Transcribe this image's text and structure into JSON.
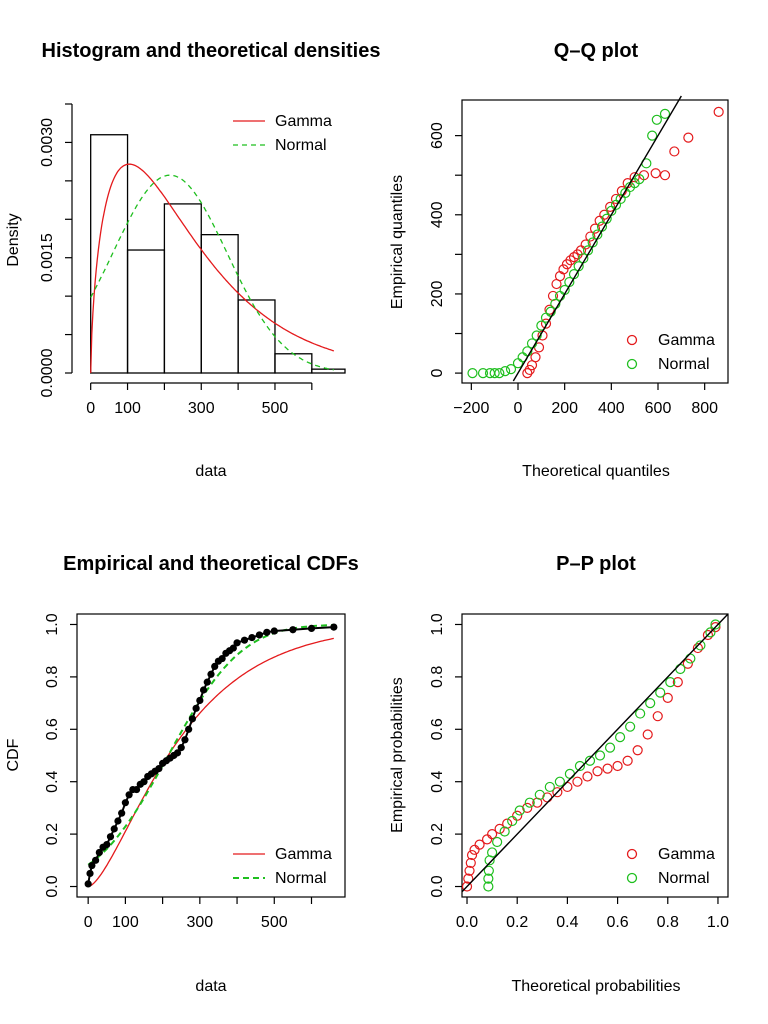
{
  "colors": {
    "gamma": "#e41a1c",
    "normal": "#1fbf1f",
    "ink": "#000000"
  },
  "chart_data": [
    {
      "id": "hist",
      "type": "bar",
      "title": "Histogram and theoretical densities",
      "xlabel": "data",
      "ylabel": "Density",
      "xlim": [
        -10,
        690
      ],
      "ylim": [
        0,
        0.0035
      ],
      "xticks": [
        0,
        100,
        300,
        500
      ],
      "xticks_minor": [
        200,
        400,
        600
      ],
      "yticks": [
        0.0,
        0.0015,
        0.003
      ],
      "ytick_labels": [
        "0.0000",
        "0.0015",
        "0.0030"
      ],
      "yticks_minor": [
        0.0005,
        0.001,
        0.002,
        0.0025,
        0.0035
      ],
      "bins": [
        {
          "x0": 0,
          "x1": 100,
          "density": 0.0031
        },
        {
          "x0": 100,
          "x1": 200,
          "density": 0.0016
        },
        {
          "x0": 200,
          "x1": 300,
          "density": 0.0022
        },
        {
          "x0": 300,
          "x1": 400,
          "density": 0.0018
        },
        {
          "x0": 400,
          "x1": 500,
          "density": 0.00095
        },
        {
          "x0": 500,
          "x1": 600,
          "density": 0.00025
        },
        {
          "x0": 600,
          "x1": 690,
          "density": 5e-05
        }
      ],
      "series": [
        {
          "name": "Gamma",
          "type": "line",
          "dist": "gamma",
          "shape": 1.65,
          "rate": 0.0062,
          "color_key": "gamma",
          "dash": ""
        },
        {
          "name": "Normal",
          "type": "line",
          "dist": "normal",
          "mean": 215,
          "sd": 155,
          "color_key": "normal",
          "dash": "5,4"
        }
      ],
      "legend": "top-right"
    },
    {
      "id": "qq",
      "type": "scatter",
      "title": "Q–Q plot",
      "xlabel": "Theoretical quantiles",
      "ylabel": "Empirical quantiles",
      "xlim": [
        -240,
        900
      ],
      "ylim": [
        -25,
        690
      ],
      "xticks": [
        -200,
        0,
        200,
        400,
        600,
        800
      ],
      "xtick_labels": [
        "−200",
        "0",
        "200",
        "400",
        "600",
        "800"
      ],
      "yticks": [
        0,
        200,
        400,
        600
      ],
      "yticks_minor": [
        100,
        300,
        500
      ],
      "reference_line": {
        "x": [
          -20,
          700
        ],
        "y": [
          -20,
          700
        ]
      },
      "series": [
        {
          "name": "Gamma",
          "color_key": "gamma",
          "points": [
            [
              40,
              0
            ],
            [
              50,
              8
            ],
            [
              60,
              20
            ],
            [
              75,
              40
            ],
            [
              90,
              65
            ],
            [
              105,
              95
            ],
            [
              120,
              125
            ],
            [
              135,
              160
            ],
            [
              150,
              195
            ],
            [
              165,
              225
            ],
            [
              180,
              245
            ],
            [
              195,
              262
            ],
            [
              210,
              275
            ],
            [
              225,
              285
            ],
            [
              240,
              293
            ],
            [
              255,
              300
            ],
            [
              270,
              310
            ],
            [
              290,
              325
            ],
            [
              310,
              345
            ],
            [
              330,
              365
            ],
            [
              350,
              385
            ],
            [
              370,
              400
            ],
            [
              395,
              420
            ],
            [
              420,
              440
            ],
            [
              445,
              460
            ],
            [
              470,
              480
            ],
            [
              500,
              495
            ],
            [
              540,
              500
            ],
            [
              590,
              505
            ],
            [
              630,
              500
            ],
            [
              670,
              560
            ],
            [
              730,
              595
            ],
            [
              860,
              660
            ]
          ]
        },
        {
          "name": "Normal",
          "color_key": "normal",
          "points": [
            [
              -195,
              0
            ],
            [
              -150,
              0
            ],
            [
              -120,
              0
            ],
            [
              -100,
              0
            ],
            [
              -80,
              0
            ],
            [
              -55,
              5
            ],
            [
              -30,
              10
            ],
            [
              0,
              25
            ],
            [
              20,
              40
            ],
            [
              40,
              55
            ],
            [
              60,
              75
            ],
            [
              80,
              95
            ],
            [
              100,
              120
            ],
            [
              120,
              140
            ],
            [
              140,
              155
            ],
            [
              160,
              175
            ],
            [
              180,
              195
            ],
            [
              200,
              210
            ],
            [
              220,
              230
            ],
            [
              240,
              250
            ],
            [
              260,
              270
            ],
            [
              280,
              290
            ],
            [
              300,
              310
            ],
            [
              320,
              330
            ],
            [
              340,
              350
            ],
            [
              360,
              370
            ],
            [
              380,
              390
            ],
            [
              400,
              410
            ],
            [
              420,
              425
            ],
            [
              440,
              440
            ],
            [
              460,
              455
            ],
            [
              480,
              470
            ],
            [
              500,
              480
            ],
            [
              520,
              490
            ],
            [
              550,
              530
            ],
            [
              575,
              600
            ],
            [
              595,
              640
            ],
            [
              630,
              655
            ]
          ]
        }
      ],
      "legend": "bottom-right"
    },
    {
      "id": "cdf",
      "type": "line",
      "title": "Empirical and theoretical CDFs",
      "xlabel": "data",
      "ylabel": "CDF",
      "xlim": [
        -30,
        690
      ],
      "ylim": [
        -0.04,
        1.04
      ],
      "xticks": [
        0,
        100,
        300,
        500
      ],
      "xticks_minor": [
        200,
        400,
        600
      ],
      "yticks": [
        0.0,
        0.2,
        0.4,
        0.6,
        0.8,
        1.0
      ],
      "ytick_labels": [
        "0.0",
        "0.2",
        "0.4",
        "0.6",
        "0.8",
        "1.0"
      ],
      "empirical": [
        [
          0,
          0.01
        ],
        [
          5,
          0.05
        ],
        [
          10,
          0.08
        ],
        [
          20,
          0.1
        ],
        [
          30,
          0.13
        ],
        [
          40,
          0.15
        ],
        [
          50,
          0.16
        ],
        [
          60,
          0.19
        ],
        [
          70,
          0.22
        ],
        [
          80,
          0.25
        ],
        [
          90,
          0.28
        ],
        [
          100,
          0.32
        ],
        [
          110,
          0.35
        ],
        [
          120,
          0.37
        ],
        [
          130,
          0.37
        ],
        [
          140,
          0.39
        ],
        [
          150,
          0.4
        ],
        [
          160,
          0.42
        ],
        [
          170,
          0.43
        ],
        [
          180,
          0.44
        ],
        [
          190,
          0.45
        ],
        [
          200,
          0.47
        ],
        [
          210,
          0.48
        ],
        [
          220,
          0.49
        ],
        [
          230,
          0.5
        ],
        [
          240,
          0.51
        ],
        [
          250,
          0.53
        ],
        [
          260,
          0.56
        ],
        [
          270,
          0.6
        ],
        [
          280,
          0.64
        ],
        [
          290,
          0.68
        ],
        [
          300,
          0.71
        ],
        [
          310,
          0.75
        ],
        [
          320,
          0.78
        ],
        [
          330,
          0.81
        ],
        [
          340,
          0.84
        ],
        [
          350,
          0.86
        ],
        [
          360,
          0.87
        ],
        [
          370,
          0.89
        ],
        [
          380,
          0.9
        ],
        [
          390,
          0.91
        ],
        [
          400,
          0.93
        ],
        [
          420,
          0.94
        ],
        [
          440,
          0.95
        ],
        [
          460,
          0.96
        ],
        [
          480,
          0.97
        ],
        [
          500,
          0.975
        ],
        [
          550,
          0.98
        ],
        [
          600,
          0.985
        ],
        [
          660,
          0.99
        ]
      ],
      "series": [
        {
          "name": "Gamma",
          "color_key": "gamma",
          "dash": ""
        },
        {
          "name": "Normal",
          "color_key": "normal",
          "dash": "6,4"
        }
      ],
      "legend": "bottom-right"
    },
    {
      "id": "pp",
      "type": "scatter",
      "title": "P–P plot",
      "xlabel": "Theoretical probabilities",
      "ylabel": "Empirical probabilities",
      "xlim": [
        -0.02,
        1.04
      ],
      "ylim": [
        -0.04,
        1.04
      ],
      "xticks": [
        0.0,
        0.2,
        0.4,
        0.6,
        0.8,
        1.0
      ],
      "xtick_labels": [
        "0.0",
        "0.2",
        "0.4",
        "0.6",
        "0.8",
        "1.0"
      ],
      "yticks": [
        0.0,
        0.2,
        0.4,
        0.6,
        0.8,
        1.0
      ],
      "ytick_labels": [
        "0.0",
        "0.2",
        "0.4",
        "0.6",
        "0.8",
        "1.0"
      ],
      "reference_line": {
        "x": [
          -0.02,
          1.04
        ],
        "y": [
          -0.02,
          1.04
        ]
      },
      "series": [
        {
          "name": "Gamma",
          "color_key": "gamma",
          "points": [
            [
              0.0,
              0.0
            ],
            [
              0.005,
              0.03
            ],
            [
              0.01,
              0.06
            ],
            [
              0.015,
              0.09
            ],
            [
              0.02,
              0.12
            ],
            [
              0.03,
              0.14
            ],
            [
              0.05,
              0.16
            ],
            [
              0.08,
              0.18
            ],
            [
              0.1,
              0.2
            ],
            [
              0.13,
              0.22
            ],
            [
              0.16,
              0.24
            ],
            [
              0.2,
              0.27
            ],
            [
              0.24,
              0.3
            ],
            [
              0.28,
              0.32
            ],
            [
              0.32,
              0.34
            ],
            [
              0.36,
              0.36
            ],
            [
              0.4,
              0.38
            ],
            [
              0.44,
              0.4
            ],
            [
              0.48,
              0.42
            ],
            [
              0.52,
              0.44
            ],
            [
              0.56,
              0.45
            ],
            [
              0.6,
              0.46
            ],
            [
              0.64,
              0.48
            ],
            [
              0.68,
              0.52
            ],
            [
              0.72,
              0.58
            ],
            [
              0.76,
              0.65
            ],
            [
              0.8,
              0.72
            ],
            [
              0.84,
              0.78
            ],
            [
              0.88,
              0.85
            ],
            [
              0.92,
              0.91
            ],
            [
              0.96,
              0.96
            ],
            [
              0.99,
              0.99
            ]
          ]
        },
        {
          "name": "Normal",
          "color_key": "normal",
          "points": [
            [
              0.085,
              0.0
            ],
            [
              0.085,
              0.03
            ],
            [
              0.087,
              0.06
            ],
            [
              0.09,
              0.1
            ],
            [
              0.1,
              0.13
            ],
            [
              0.12,
              0.17
            ],
            [
              0.15,
              0.21
            ],
            [
              0.18,
              0.25
            ],
            [
              0.21,
              0.29
            ],
            [
              0.25,
              0.32
            ],
            [
              0.29,
              0.35
            ],
            [
              0.33,
              0.38
            ],
            [
              0.37,
              0.4
            ],
            [
              0.41,
              0.43
            ],
            [
              0.45,
              0.46
            ],
            [
              0.49,
              0.48
            ],
            [
              0.53,
              0.5
            ],
            [
              0.57,
              0.53
            ],
            [
              0.61,
              0.57
            ],
            [
              0.65,
              0.61
            ],
            [
              0.69,
              0.66
            ],
            [
              0.73,
              0.7
            ],
            [
              0.77,
              0.74
            ],
            [
              0.81,
              0.78
            ],
            [
              0.85,
              0.83
            ],
            [
              0.89,
              0.87
            ],
            [
              0.93,
              0.92
            ],
            [
              0.97,
              0.97
            ],
            [
              0.99,
              1.0
            ]
          ]
        }
      ],
      "legend": "bottom-right"
    }
  ]
}
